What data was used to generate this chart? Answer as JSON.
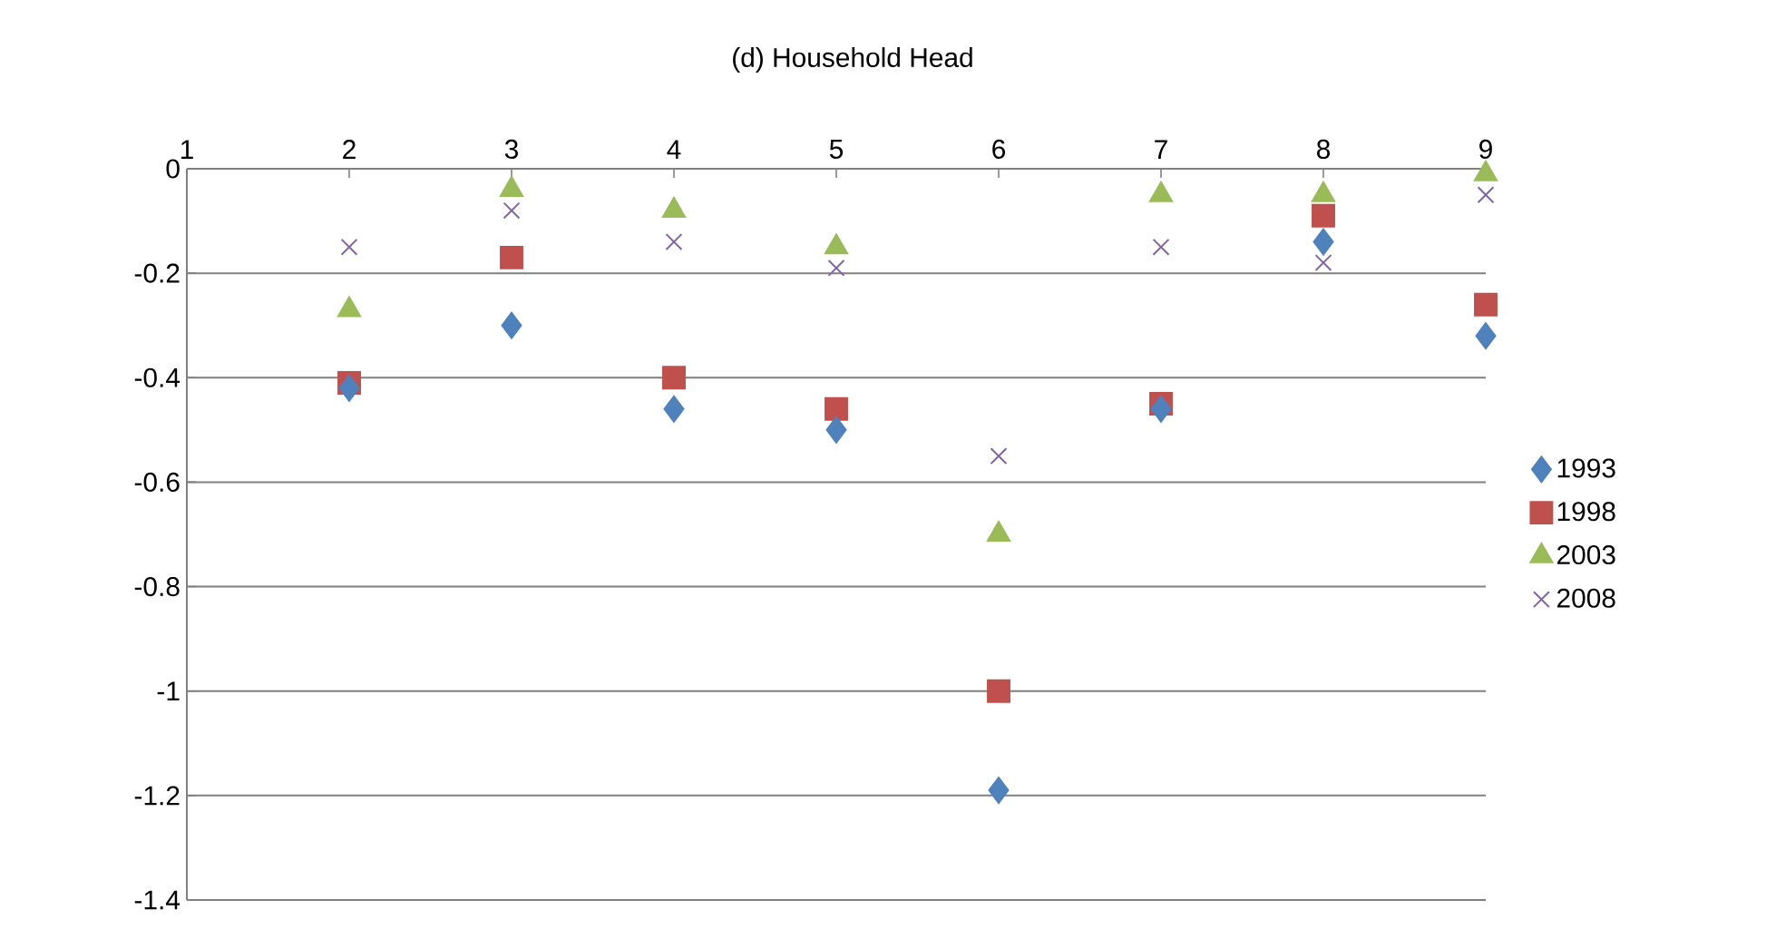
{
  "chart_data": {
    "type": "scatter",
    "title": "(d) Household Head",
    "x": [
      2,
      3,
      4,
      5,
      6,
      7,
      8,
      9
    ],
    "xlim": [
      1,
      9
    ],
    "xticks": [
      1,
      2,
      3,
      4,
      5,
      6,
      7,
      8,
      9
    ],
    "ylim": [
      -1.4,
      0
    ],
    "yticks": [
      0,
      -0.2,
      -0.4,
      -0.6,
      -0.8,
      -1,
      -1.2,
      -1.4
    ],
    "grid": "y",
    "legend": "right",
    "series": [
      {
        "name": "1993",
        "color": "#4f81bd",
        "marker": "diamond",
        "values": [
          -0.42,
          -0.3,
          -0.46,
          -0.5,
          -1.19,
          -0.46,
          -0.14,
          -0.32
        ]
      },
      {
        "name": "1998",
        "color": "#c0504d",
        "marker": "square",
        "values": [
          -0.41,
          -0.17,
          -0.4,
          -0.46,
          -1.0,
          -0.45,
          -0.09,
          -0.26
        ]
      },
      {
        "name": "2003",
        "color": "#9bbb59",
        "marker": "triangle",
        "values": [
          -0.27,
          -0.04,
          -0.08,
          -0.15,
          -0.7,
          -0.05,
          -0.05,
          -0.01
        ]
      },
      {
        "name": "2008",
        "color": "#8064a2",
        "marker": "cross",
        "values": [
          -0.15,
          -0.08,
          -0.14,
          -0.19,
          -0.55,
          -0.15,
          -0.18,
          -0.05
        ]
      }
    ]
  }
}
